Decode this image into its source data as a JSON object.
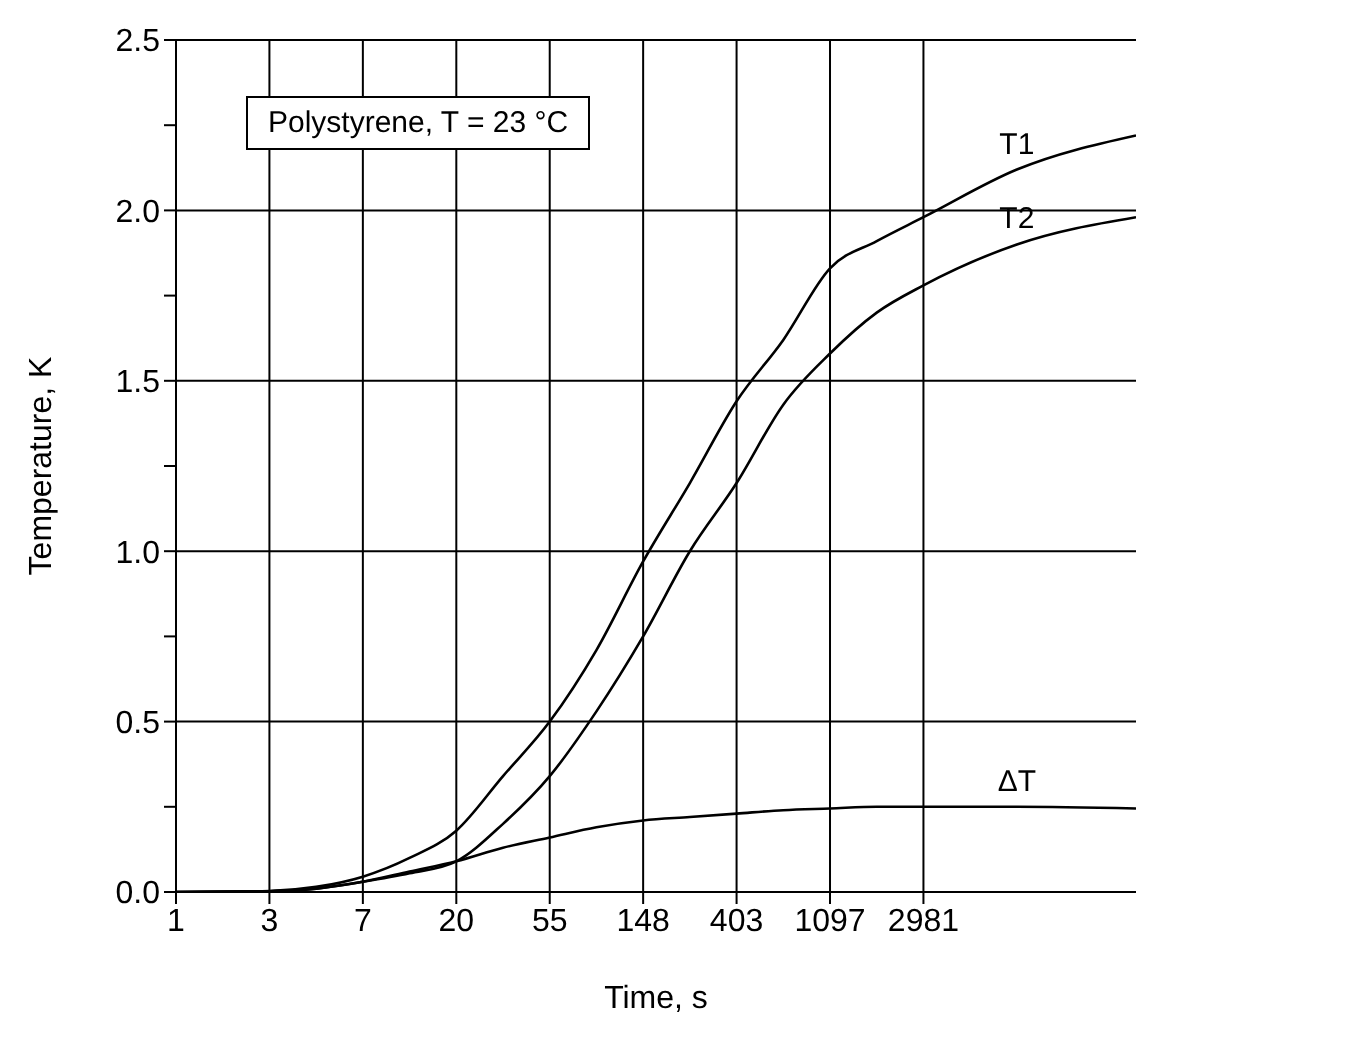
{
  "chart_data": {
    "type": "line",
    "xlabel": "Time, s",
    "ylabel": "Temperature, K",
    "log": "x",
    "x": [
      1,
      2.718,
      4.482,
      7.389,
      12.18,
      20.09,
      33.12,
      54.6,
      90.02,
      148.4,
      244.7,
      403.4,
      665.1,
      1096.6,
      1808,
      2981,
      8103,
      29000
    ],
    "series": [
      {
        "name": "T1",
        "color": "#000000",
        "values": [
          0,
          0.003,
          0.015,
          0.045,
          0.1,
          0.18,
          0.34,
          0.5,
          0.71,
          0.97,
          1.2,
          1.44,
          1.62,
          1.83,
          1.91,
          1.98,
          2.12,
          2.22
        ]
      },
      {
        "name": "T2",
        "color": "#000000",
        "values": [
          0,
          0.002,
          0.01,
          0.03,
          0.055,
          0.09,
          0.2,
          0.34,
          0.53,
          0.75,
          1.0,
          1.2,
          1.43,
          1.58,
          1.7,
          1.78,
          1.9,
          1.98
        ]
      },
      {
        "name": "ΔT",
        "color": "#000000",
        "values": [
          0,
          0.002,
          0.01,
          0.03,
          0.06,
          0.09,
          0.13,
          0.16,
          0.19,
          0.21,
          0.22,
          0.23,
          0.24,
          0.245,
          0.25,
          0.25,
          0.25,
          0.245
        ]
      }
    ],
    "xlim": [
      1,
      29000
    ],
    "xticks": [
      1,
      {
        "value": 2.718,
        "label": "3"
      },
      {
        "value": 7.389,
        "label": "7"
      },
      {
        "value": 20.09,
        "label": "20"
      },
      {
        "value": 54.6,
        "label": "55"
      },
      {
        "value": 148.4,
        "label": "148"
      },
      {
        "value": 403.4,
        "label": "403"
      },
      {
        "value": 1096.6,
        "label": "1097"
      },
      2981
    ],
    "ylim": [
      0,
      2.5
    ],
    "yticks": [
      {
        "value": 0,
        "label": "0.0"
      },
      {
        "value": 0.25,
        "label": null
      },
      0.5,
      {
        "value": 0.75,
        "label": null
      },
      {
        "value": 1,
        "label": "1.0"
      },
      {
        "value": 1.25,
        "label": null
      },
      1.5,
      {
        "value": 1.75,
        "label": null
      },
      {
        "value": 2,
        "label": "2.0"
      },
      {
        "value": 2.25,
        "label": null
      },
      2.5
    ],
    "grid": true,
    "marker": "none",
    "line_style": "solid",
    "annotations": [
      "Polystyrene, T = 23 °C"
    ]
  }
}
